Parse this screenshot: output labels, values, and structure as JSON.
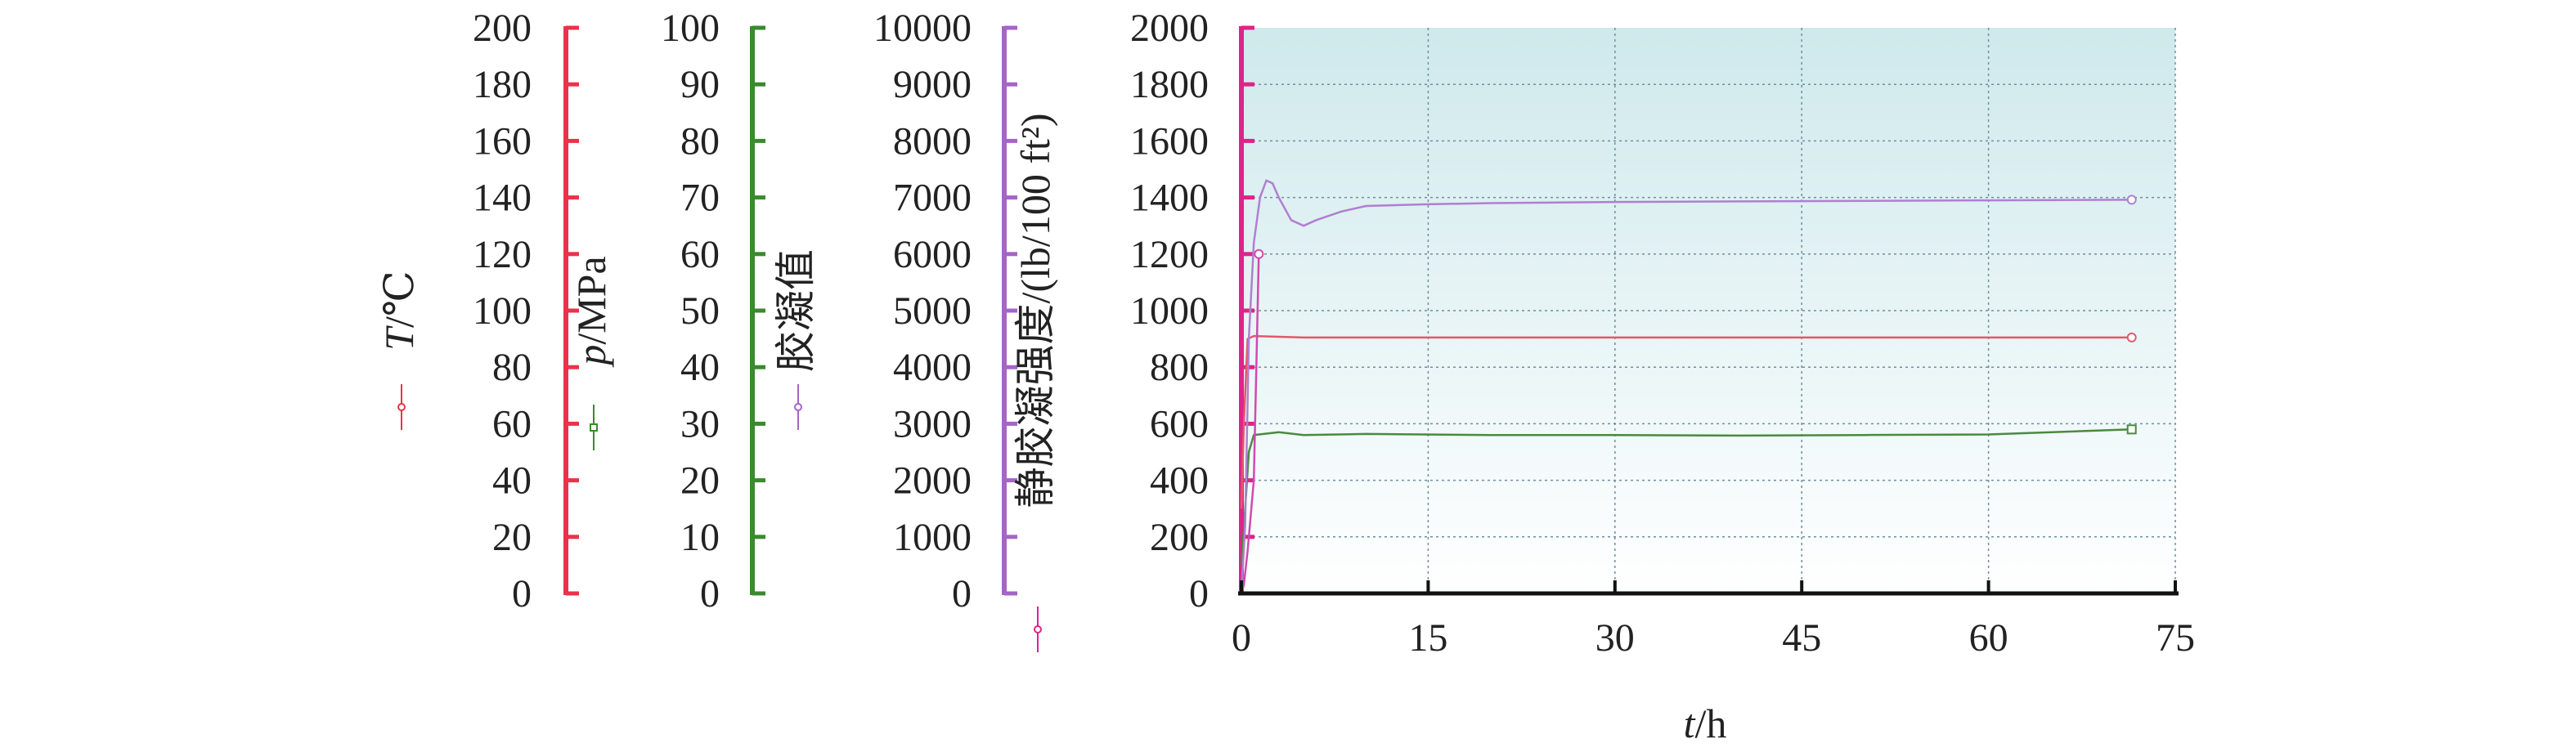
{
  "chart_data": {
    "type": "line",
    "title": "",
    "xlabel": {
      "var": "t",
      "unit": "/h"
    },
    "x_ticks": [
      "0",
      "15",
      "30",
      "45",
      "60",
      "75"
    ],
    "xlim": [
      0,
      75
    ],
    "grid": true,
    "legend": "markers beside each y-axis title",
    "background": {
      "top": "#cfe9ec",
      "bottom": "#ffffff"
    },
    "axes": [
      {
        "id": "T",
        "title_var": "T",
        "title_unit": "/℃",
        "ticks": [
          "0",
          "20",
          "40",
          "60",
          "80",
          "100",
          "120",
          "140",
          "160",
          "180",
          "200"
        ],
        "ylim": [
          0,
          200
        ],
        "color": "#e8334a",
        "marker": "circle"
      },
      {
        "id": "p",
        "title_var": "p",
        "title_unit": "/MPa",
        "ticks": [
          "0",
          "10",
          "20",
          "30",
          "40",
          "50",
          "60",
          "70",
          "80",
          "90",
          "100"
        ],
        "ylim": [
          0,
          100
        ],
        "color": "#3a8a2e",
        "marker": "square"
      },
      {
        "id": "gel",
        "title_var": "",
        "title_unit": "胶凝值",
        "ticks": [
          "0",
          "1000",
          "2000",
          "3000",
          "4000",
          "5000",
          "6000",
          "7000",
          "8000",
          "9000",
          "10000"
        ],
        "ylim": [
          0,
          10000
        ],
        "color": "#a564c8",
        "marker": "circle"
      },
      {
        "id": "sgs",
        "title_var": "",
        "title_unit": "静胶凝强度/(lb/100 ft²)",
        "ticks": [
          "0",
          "200",
          "400",
          "600",
          "800",
          "1000",
          "1200",
          "1400",
          "1600",
          "1800",
          "2000"
        ],
        "ylim": [
          0,
          2000
        ],
        "color": "#e0238a",
        "marker": "circle"
      }
    ],
    "series": [
      {
        "axis": "T",
        "color": "#e05a6a",
        "x": [
          0,
          0.2,
          0.5,
          1,
          5,
          10,
          20,
          30,
          40,
          50,
          60,
          71.5
        ],
        "y": [
          30,
          60,
          90,
          91,
          90.5,
          90.5,
          90.5,
          90.5,
          90.5,
          90.5,
          90.5,
          90.5
        ]
      },
      {
        "axis": "p",
        "color": "#4a8a40",
        "x": [
          0,
          0.3,
          0.6,
          1,
          3,
          5,
          10,
          20,
          30,
          40,
          50,
          60,
          71.5
        ],
        "y": [
          5,
          15,
          25,
          28,
          28.5,
          28,
          28.2,
          28,
          28,
          27.9,
          28,
          28.1,
          29
        ]
      },
      {
        "axis": "gel",
        "color": "#b07fd0",
        "x": [
          0,
          0.3,
          0.6,
          1,
          1.5,
          2,
          2.5,
          3,
          4,
          5,
          6,
          8,
          10,
          15,
          20,
          30,
          40,
          50,
          60,
          71.5
        ],
        "y": [
          0,
          1200,
          4500,
          6200,
          7000,
          7300,
          7250,
          7000,
          6600,
          6500,
          6600,
          6750,
          6850,
          6880,
          6900,
          6920,
          6930,
          6940,
          6950,
          6960
        ]
      },
      {
        "axis": "sgs",
        "color": "#d04ab0",
        "x": [
          0,
          0.2,
          0.5,
          1,
          1.2,
          1.4
        ],
        "y": [
          0,
          30,
          150,
          400,
          800,
          1200
        ]
      }
    ]
  }
}
